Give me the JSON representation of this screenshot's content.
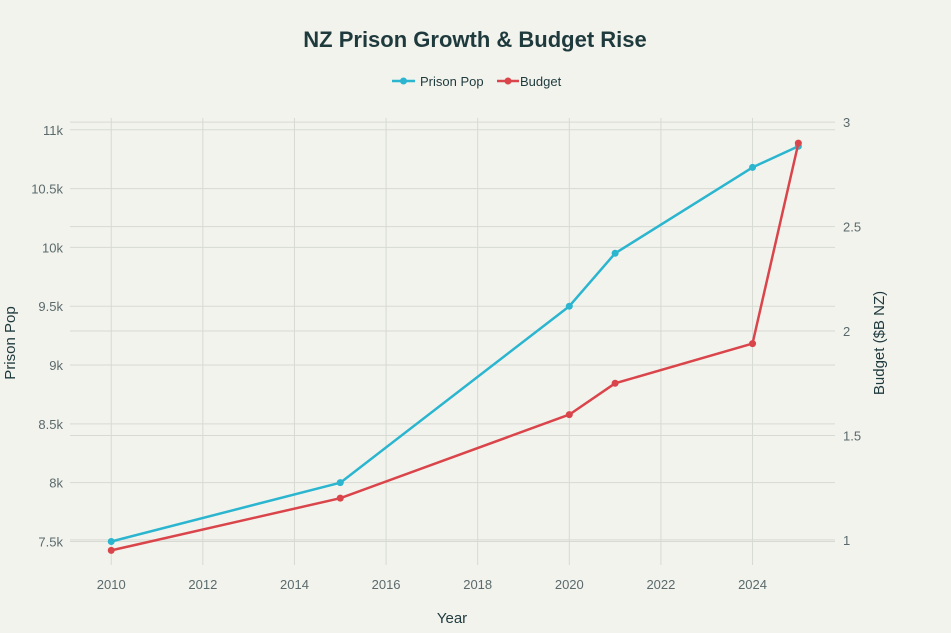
{
  "chart_data": {
    "type": "line",
    "title": "NZ Prison Growth & Budget Rise",
    "xlabel": "Year",
    "ylabel": "Prison Pop",
    "y2label": "Budget ($B NZ)",
    "xlim": [
      2009.1,
      2025.8
    ],
    "ylim": [
      7300,
      11100
    ],
    "y2lim": [
      0.88,
      3.02
    ],
    "x_ticks": [
      2010,
      2012,
      2014,
      2016,
      2018,
      2020,
      2022,
      2024
    ],
    "x_tick_labels": [
      "2010",
      "2012",
      "2014",
      "2016",
      "2018",
      "2020",
      "2022",
      "2024"
    ],
    "y_ticks": [
      7500,
      8000,
      8500,
      9000,
      9500,
      10000,
      10500,
      11000
    ],
    "y_tick_labels": [
      "7.5k",
      "8k",
      "8.5k",
      "9k",
      "9.5k",
      "10k",
      "10.5k",
      "11k"
    ],
    "y2_ticks": [
      1,
      1.5,
      2,
      2.5,
      3
    ],
    "y2_tick_labels": [
      "1",
      "1.5",
      "2",
      "2.5",
      "3"
    ],
    "legend_position": "top-center",
    "grid": true,
    "series": [
      {
        "name": "Prison Pop",
        "axis": "left",
        "color": "#2bb5cf",
        "x": [
          2010,
          2015,
          2020,
          2021,
          2024,
          2025
        ],
        "values": [
          7500,
          8000,
          9500,
          9950,
          10680,
          10860
        ]
      },
      {
        "name": "Budget",
        "axis": "right",
        "color": "#d9454a",
        "x": [
          2010,
          2015,
          2020,
          2021,
          2024,
          2025
        ],
        "values": [
          0.95,
          1.2,
          1.6,
          1.75,
          1.94,
          2.9
        ]
      }
    ]
  }
}
